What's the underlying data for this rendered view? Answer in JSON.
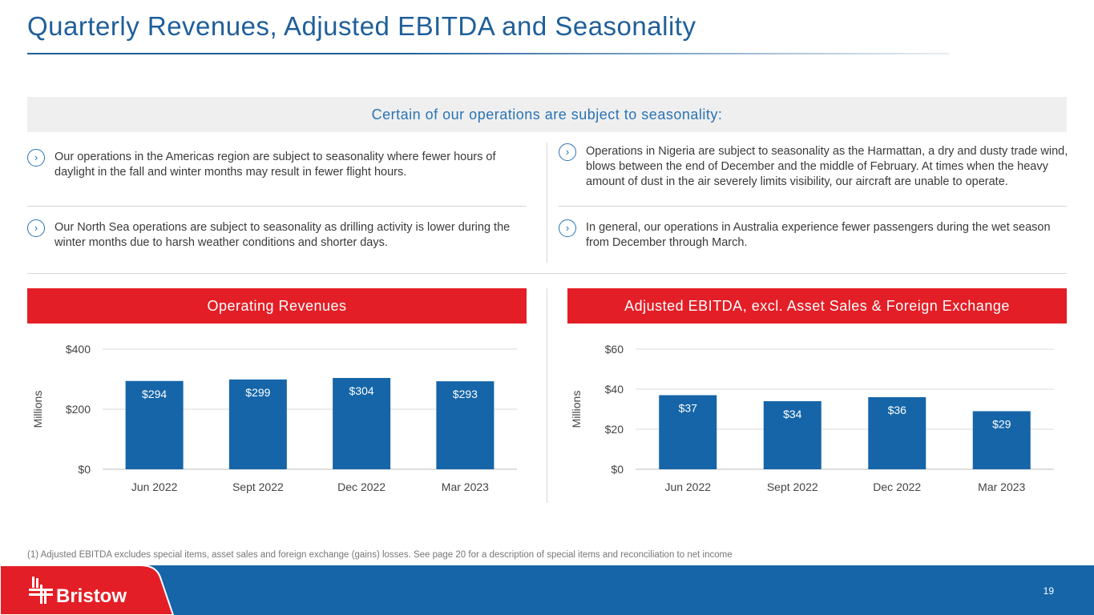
{
  "title": "Quarterly Revenues, Adjusted EBITDA and Seasonality",
  "band": "Certain of our operations are subject to seasonality:",
  "bullets": [
    "Our operations in the Americas region are subject to seasonality where fewer hours of daylight in the fall and winter months may result in fewer flight hours.",
    "Operations in Nigeria are subject to seasonality as the Harmattan, a dry and dusty trade wind, blows between the end of December and the middle of February. At times when the heavy amount of dust in the air severely limits visibility, our aircraft are unable to operate.",
    "Our North Sea operations are subject to seasonality as drilling activity is lower during the winter months due to harsh weather conditions and shorter days.",
    "In general, our operations in Australia experience fewer passengers during the wet season from December through March."
  ],
  "footnote": "(1)  Adjusted EBITDA excludes special items, asset sales and foreign exchange (gains) losses. See page 20 for a description of special items and reconciliation to net income",
  "logo_text": "Bristow",
  "page_number": "19",
  "colors": {
    "bar": "#1565a8",
    "header": "#e31e26",
    "accent": "#1f5f9a"
  },
  "chart_data": [
    {
      "type": "bar",
      "title": "Operating Revenues",
      "ylabel": "Millions",
      "xlabel": "",
      "categories": [
        "Jun 2022",
        "Sept 2022",
        "Dec 2022",
        "Mar 2023"
      ],
      "values": [
        294,
        299,
        304,
        293
      ],
      "labels": [
        "$294",
        "$299",
        "$304",
        "$293"
      ],
      "ylim": [
        0,
        400
      ],
      "yticks": [
        0,
        200,
        400
      ],
      "ytick_labels": [
        "$0",
        "$200",
        "$400"
      ],
      "grid": true
    },
    {
      "type": "bar",
      "title": "Adjusted EBITDA, excl. Asset Sales & Foreign Exchange",
      "ylabel": "Millions",
      "xlabel": "",
      "categories": [
        "Jun 2022",
        "Sept 2022",
        "Dec 2022",
        "Mar 2023"
      ],
      "values": [
        37,
        34,
        36,
        29
      ],
      "labels": [
        "$37",
        "$34",
        "$36",
        "$29"
      ],
      "ylim": [
        0,
        60
      ],
      "yticks": [
        0,
        20,
        40,
        60
      ],
      "ytick_labels": [
        "$0",
        "$20",
        "$40",
        "$60"
      ],
      "grid": true
    }
  ]
}
